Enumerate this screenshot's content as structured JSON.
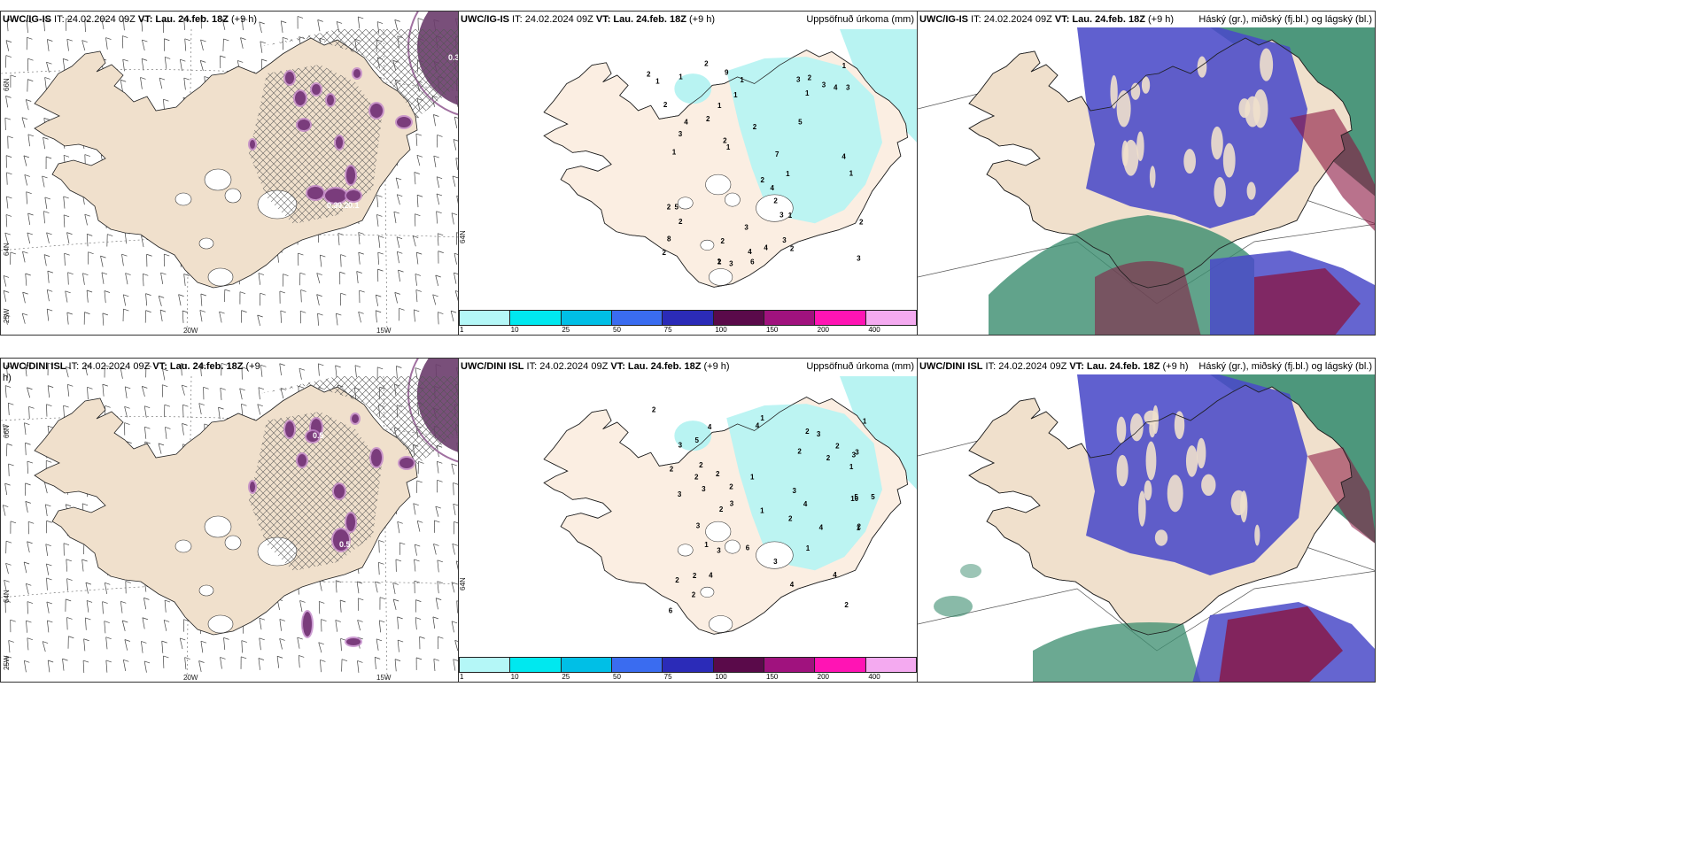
{
  "panels": [
    {
      "title_model": "UWC/IG-IS",
      "title_it": " IT: 24.02.2024 09Z ",
      "title_vt": "VT: Lau. 24.feb. 18Z",
      "title_lead": " (+9 h)",
      "right_label": "",
      "ticks": {
        "lat_top": "66N",
        "lat_mid": "64N",
        "lon_left": "25W",
        "lon_20": "20W",
        "lon_15": "15W"
      },
      "label_values": [
        "0.3",
        "0.3",
        "0.2",
        "0.1"
      ]
    },
    {
      "title_model": "UWC/IG-IS",
      "title_it": " IT: 24.02.2024 09Z ",
      "title_vt": "VT: Lau. 24.feb. 18Z",
      "title_lead": " (+9 h)",
      "right_label": "Uppsöfnuð úrkoma (mm)",
      "ticks": {
        "lat_mid": "64N"
      }
    },
    {
      "title_model": "UWC/IG-IS",
      "title_it": " IT: 24.02.2024 09Z ",
      "title_vt": "VT: Lau. 24.feb. 18Z",
      "title_lead": " (+9 h)",
      "right_label": "Háský (gr.), miðský (fj.bl.) og lágský (bl.)"
    },
    {
      "title_model": "UWC/DINI ISL",
      "title_it": " IT: 24.02.2024 09Z ",
      "title_vt": "VT: Lau. 24.feb. 18Z",
      "title_lead": " (+9",
      "title_wrap": "h)",
      "right_label": "",
      "ticks": {
        "lat_top": "66N",
        "lat_mid": "64N",
        "lon_left": "25W",
        "lon_20": "20W",
        "lon_15": "15W"
      },
      "label_values": [
        "0.5",
        "0.5"
      ]
    },
    {
      "title_model": "UWC/DINI ISL",
      "title_it": " IT: 24.02.2024 09Z ",
      "title_vt": "VT: Lau. 24.feb. 18Z",
      "title_lead": " (+9 h)",
      "right_label": "Uppsöfnuð úrkoma (mm)",
      "ticks": {
        "lat_mid": "64N"
      }
    },
    {
      "title_model": "UWC/DINI ISL",
      "title_it": " IT: 24.02.2024 09Z ",
      "title_vt": "VT: Lau. 24.feb. 18Z",
      "title_lead": " (+9 h)",
      "right_label": "Háský (gr.), miðský (fj.bl.) og lágský (bl.)"
    }
  ],
  "colorbar": {
    "labels": [
      "1",
      "10",
      "25",
      "50",
      "75",
      "100",
      "150",
      "200",
      "400"
    ],
    "colors": [
      "#b4f7f7",
      "#00e8ef",
      "#00bfe6",
      "#3a6cf0",
      "#2b2bb8",
      "#5a0a4a",
      "#a0127e",
      "#ff14b4",
      "#f4aaf0"
    ]
  },
  "colors": {
    "land": "#f0e0cc",
    "precip_land": "#fbeee2",
    "precip": "#b8f3f2",
    "snow": "#7a3c7c",
    "high_cloud": "#3a8c6e",
    "mid_cloud": "#4a4ac8",
    "low_cloud": "#8a1440"
  },
  "precip_top": [
    "1",
    "1",
    "2",
    "2",
    "3",
    "2",
    "3",
    "2",
    "4",
    "8",
    "2",
    "1",
    "1",
    "3",
    "4",
    "2",
    "2",
    "7",
    "4",
    "2",
    "1",
    "1",
    "1",
    "4",
    "2",
    "6",
    "5",
    "2",
    "1",
    "3",
    "4",
    "2",
    "9",
    "1",
    "2",
    "5",
    "3",
    "2",
    "1",
    "1",
    "3",
    "4",
    "2",
    "3",
    "3",
    "1",
    "1",
    "2",
    "2",
    "3"
  ],
  "precip_bot": [
    "1",
    "2",
    "3",
    "3",
    "5",
    "6",
    "3",
    "2",
    "1",
    "4",
    "6",
    "2",
    "1",
    "3",
    "4",
    "2",
    "3",
    "2",
    "2",
    "2",
    "10",
    "2",
    "5",
    "3",
    "2",
    "2",
    "4",
    "2",
    "5",
    "3",
    "2",
    "2",
    "3",
    "4",
    "3",
    "4",
    "2",
    "3",
    "2",
    "2",
    "4",
    "1",
    "1",
    "1",
    "3",
    "1",
    "4",
    "1",
    "2"
  ]
}
